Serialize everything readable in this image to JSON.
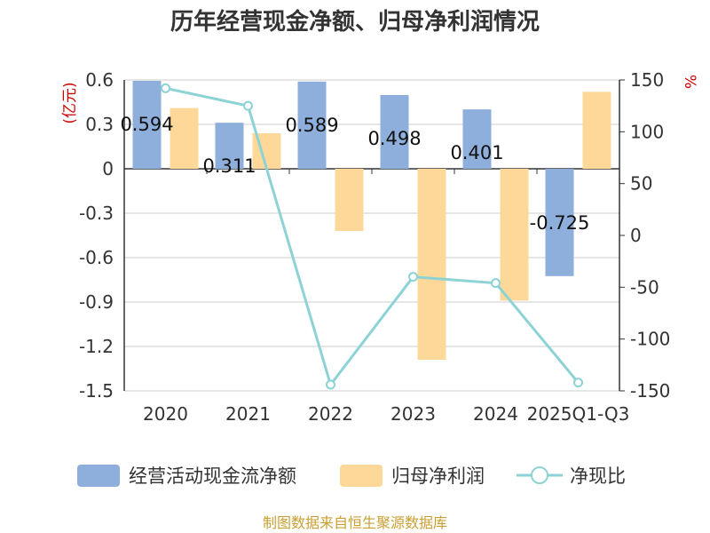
{
  "chart_data": {
    "type": "bar",
    "title": "历年经营现金净额、归母净利润情况",
    "categories": [
      "2020",
      "2021",
      "2022",
      "2023",
      "2024",
      "2025Q1-Q3"
    ],
    "left_axis": {
      "unit": "(亿元)",
      "ylim": [
        -1.5,
        0.6
      ],
      "ticks": [
        "0.6",
        "0.3",
        "0",
        "-0.3",
        "-0.6",
        "-0.9",
        "-1.2",
        "-1.5"
      ]
    },
    "right_axis": {
      "unit": "%",
      "ylim": [
        -150,
        150
      ],
      "ticks": [
        "150",
        "100",
        "50",
        "0",
        "-50",
        "-100",
        "-150"
      ]
    },
    "series": [
      {
        "name": "经营活动现金流净额",
        "type": "bar",
        "axis": "left",
        "color": "#8eaedb",
        "values": [
          0.594,
          0.311,
          0.589,
          0.498,
          0.401,
          -0.725
        ],
        "labels": [
          "0.594",
          "0.311",
          "0.589",
          "0.498",
          "0.401",
          "-0.725"
        ]
      },
      {
        "name": "归母净利润",
        "type": "bar",
        "axis": "left",
        "color": "#fdd898",
        "values": [
          0.41,
          0.24,
          -0.42,
          -1.29,
          -0.89,
          0.52
        ]
      },
      {
        "name": "净现比",
        "type": "line",
        "axis": "right",
        "color": "#8dd3d6",
        "values": [
          142,
          125,
          -144,
          -40,
          -46,
          -142
        ]
      }
    ],
    "grid": true,
    "legend_position": "bottom",
    "source": "制图数据来自恒生聚源数据库"
  }
}
